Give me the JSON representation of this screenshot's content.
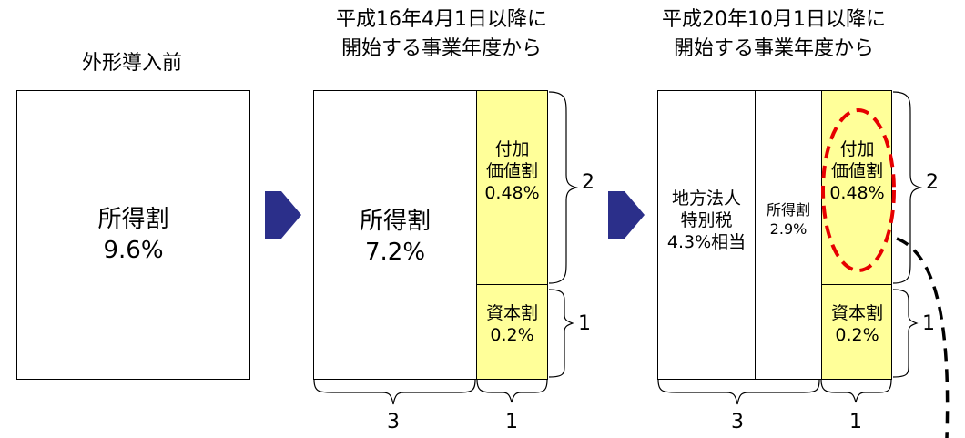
{
  "columns": [
    {
      "title": "外形導入前",
      "segments": [
        {
          "label": "所得割\n9.6%",
          "highlight": false
        }
      ]
    },
    {
      "title": "平成16年4月1日以降に\n開始する事業年度から",
      "segments": [
        {
          "label": "所得割\n7.2%",
          "highlight": false
        },
        {
          "label": "付加\n価値割\n0.48%",
          "highlight": true
        },
        {
          "label": "資本割\n0.2%",
          "highlight": true
        }
      ],
      "brace_labels": {
        "added_value": "2",
        "capital": "1",
        "bottom_left": "3",
        "bottom_right": "1"
      }
    },
    {
      "title": "平成20年10月1日以降に\n開始する事業年度から",
      "segments": [
        {
          "label": "地方法人\n特別税\n4.3%相当",
          "highlight": false
        },
        {
          "label": "所得割\n2.9%",
          "highlight": false
        },
        {
          "label": "付加\n価値割\n0.48%",
          "highlight": true
        },
        {
          "label": "資本割\n0.2%",
          "highlight": true
        }
      ],
      "brace_labels": {
        "added_value": "2",
        "capital": "1",
        "bottom_left": "3",
        "bottom_right": "1"
      }
    }
  ],
  "colors": {
    "arrow": "#2b2f8a",
    "highlight_fill": "#ffff99",
    "callout_ellipse": "#e60000"
  }
}
